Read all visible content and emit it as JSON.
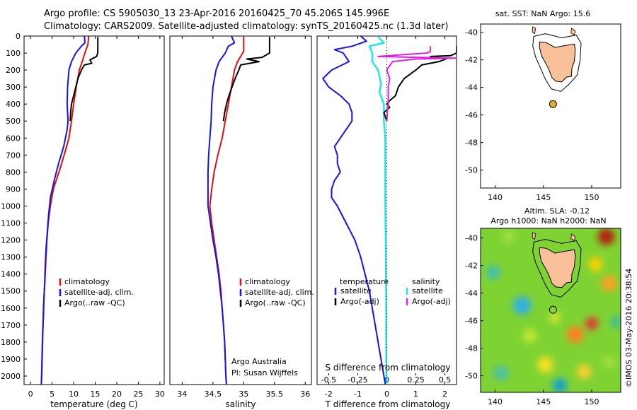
{
  "header": {
    "line1": "Argo profile: CS 5905030_13 23-Apr-2016 20160425_70 45.206S 145.996E",
    "line2": "Climatology: CARS2009. Satellite-adjusted climatology: synTS_20160425.nc (1.3d later)"
  },
  "side_stamp": "©IMOS 03-May-2016 20:38:54",
  "colors": {
    "climatology": "#e01010",
    "satellite": "#1414e6",
    "argo": "#000000",
    "sal_satellite": "#20e6e6",
    "sal_argo": "#e020e0",
    "land": "#f7c098",
    "float": "#e8b020"
  },
  "chart_data": [
    {
      "type": "line",
      "name": "temperature-panel",
      "xlabel": "temperature (deg C)",
      "xlim": [
        -1.5,
        31
      ],
      "xticks": [
        0,
        5,
        10,
        15,
        20,
        25,
        30
      ],
      "ylim": [
        2050,
        0
      ],
      "yticks": [
        0,
        100,
        200,
        300,
        400,
        500,
        600,
        700,
        800,
        900,
        1000,
        1100,
        1200,
        1300,
        1400,
        1500,
        1600,
        1700,
        1800,
        1900,
        2000
      ],
      "legend": [
        "climatology",
        "satellite-adj. clim.",
        "Argo(..raw -QC)"
      ],
      "series": [
        {
          "name": "climatology",
          "color_key": "climatology",
          "points": [
            [
              13.5,
              0
            ],
            [
              13.3,
              50
            ],
            [
              12.6,
              100
            ],
            [
              12.0,
              150
            ],
            [
              11.3,
              200
            ],
            [
              10.6,
              300
            ],
            [
              10.0,
              400
            ],
            [
              9.5,
              500
            ],
            [
              8.9,
              600
            ],
            [
              7.8,
              700
            ],
            [
              6.6,
              800
            ],
            [
              5.3,
              900
            ],
            [
              4.6,
              1000
            ],
            [
              4.1,
              1100
            ],
            [
              3.8,
              1200
            ],
            [
              3.6,
              1300
            ],
            [
              3.4,
              1400
            ],
            [
              3.2,
              1500
            ],
            [
              3.0,
              1600
            ],
            [
              2.9,
              1700
            ],
            [
              2.8,
              1800
            ],
            [
              2.7,
              1900
            ],
            [
              2.6,
              2000
            ],
            [
              2.5,
              2050
            ]
          ]
        },
        {
          "name": "satellite-adj. clim.",
          "color_key": "satellite",
          "points": [
            [
              12.5,
              0
            ],
            [
              12.6,
              40
            ],
            [
              11.8,
              60
            ],
            [
              10.5,
              100
            ],
            [
              9.5,
              150
            ],
            [
              8.9,
              200
            ],
            [
              8.6,
              300
            ],
            [
              8.5,
              400
            ],
            [
              8.7,
              500
            ],
            [
              8.5,
              550
            ],
            [
              7.7,
              650
            ],
            [
              6.5,
              750
            ],
            [
              5.5,
              850
            ],
            [
              4.6,
              950
            ],
            [
              4.2,
              1050
            ],
            [
              3.9,
              1150
            ],
            [
              3.6,
              1250
            ],
            [
              3.4,
              1350
            ],
            [
              3.3,
              1450
            ],
            [
              3.1,
              1550
            ],
            [
              3.0,
              1650
            ],
            [
              2.8,
              1750
            ],
            [
              2.7,
              1850
            ],
            [
              2.6,
              1950
            ],
            [
              2.5,
              2050
            ]
          ]
        },
        {
          "name": "Argo(..raw -QC)",
          "color_key": "argo",
          "points": [
            [
              15.6,
              5
            ],
            [
              15.6,
              100
            ],
            [
              15.3,
              120
            ],
            [
              13.8,
              140
            ],
            [
              14.2,
              160
            ],
            [
              12.5,
              170
            ],
            [
              11.8,
              200
            ],
            [
              11.0,
              250
            ],
            [
              10.5,
              300
            ],
            [
              10.0,
              350
            ],
            [
              9.5,
              400
            ],
            [
              9.3,
              450
            ],
            [
              9.2,
              500
            ]
          ]
        }
      ]
    },
    {
      "type": "line",
      "name": "salinity-panel",
      "xlabel": "salinity",
      "xlim": [
        33.8,
        36.1
      ],
      "xticks": [
        34,
        34.5,
        35,
        35.5,
        36
      ],
      "ylim": [
        2050,
        0
      ],
      "legend": [
        "climatology",
        "satellite-adj. clim.",
        "Argo(..raw -QC)"
      ],
      "annotation": [
        "Argo Australia",
        "PI: Susan Wijffels"
      ],
      "series": [
        {
          "name": "climatology",
          "color_key": "climatology",
          "points": [
            [
              35.0,
              0
            ],
            [
              35.0,
              50
            ],
            [
              35.0,
              90
            ],
            [
              34.9,
              150
            ],
            [
              34.85,
              200
            ],
            [
              34.8,
              300
            ],
            [
              34.75,
              400
            ],
            [
              34.7,
              500
            ],
            [
              34.65,
              600
            ],
            [
              34.58,
              700
            ],
            [
              34.52,
              800
            ],
            [
              34.48,
              900
            ],
            [
              34.45,
              1000
            ],
            [
              34.48,
              1100
            ],
            [
              34.52,
              1200
            ],
            [
              34.56,
              1300
            ],
            [
              34.6,
              1400
            ],
            [
              34.63,
              1500
            ],
            [
              34.65,
              1600
            ],
            [
              34.67,
              1700
            ],
            [
              34.69,
              1800
            ],
            [
              34.7,
              1900
            ],
            [
              34.71,
              2000
            ],
            [
              34.72,
              2050
            ]
          ]
        },
        {
          "name": "satellite-adj. clim.",
          "color_key": "satellite",
          "points": [
            [
              34.8,
              0
            ],
            [
              34.85,
              40
            ],
            [
              34.75,
              60
            ],
            [
              34.7,
              100
            ],
            [
              34.6,
              150
            ],
            [
              34.55,
              200
            ],
            [
              34.5,
              300
            ],
            [
              34.48,
              400
            ],
            [
              34.47,
              500
            ],
            [
              34.45,
              600
            ],
            [
              34.43,
              700
            ],
            [
              34.42,
              800
            ],
            [
              34.42,
              900
            ],
            [
              34.42,
              1000
            ],
            [
              34.46,
              1100
            ],
            [
              34.5,
              1200
            ],
            [
              34.55,
              1300
            ],
            [
              34.59,
              1400
            ],
            [
              34.62,
              1500
            ],
            [
              34.65,
              1600
            ],
            [
              34.67,
              1700
            ],
            [
              34.69,
              1800
            ],
            [
              34.7,
              1900
            ],
            [
              34.71,
              2000
            ],
            [
              34.72,
              2050
            ]
          ]
        },
        {
          "name": "Argo(..raw -QC)",
          "color_key": "argo",
          "points": [
            [
              35.42,
              5
            ],
            [
              35.42,
              100
            ],
            [
              35.3,
              125
            ],
            [
              35.05,
              135
            ],
            [
              35.25,
              150
            ],
            [
              34.95,
              170
            ],
            [
              34.92,
              200
            ],
            [
              34.86,
              250
            ],
            [
              34.81,
              300
            ],
            [
              34.76,
              350
            ],
            [
              34.72,
              400
            ],
            [
              34.69,
              450
            ],
            [
              34.67,
              500
            ]
          ]
        }
      ]
    },
    {
      "type": "line",
      "name": "difference-panel",
      "xlabel": "T difference from climatology",
      "top_axis_label": "S difference from climatology",
      "xlim": [
        -2.4,
        2.4
      ],
      "xticks": [
        -2,
        -1,
        0,
        1,
        2
      ],
      "top_ticks": [
        "-0.5",
        "-0.25",
        "0",
        "0.25",
        "0.5"
      ],
      "top_tick_values": [
        -0.5,
        -0.25,
        0,
        0.25,
        0.5
      ],
      "ylim": [
        2050,
        0
      ],
      "legend_groups": [
        "temperature",
        "salinity"
      ],
      "legend": [
        "satellite",
        "Argo(-adj)",
        "satellite",
        "Argo(-adj)"
      ],
      "series": [
        {
          "name": "temperature satellite",
          "color_key": "satellite",
          "points": [
            [
              -0.9,
              0
            ],
            [
              -0.7,
              30
            ],
            [
              -1.2,
              60
            ],
            [
              -1.8,
              80
            ],
            [
              -1.5,
              100
            ],
            [
              -1.3,
              150
            ],
            [
              -1.9,
              200
            ],
            [
              -2.2,
              250
            ],
            [
              -2.0,
              300
            ],
            [
              -1.6,
              350
            ],
            [
              -1.3,
              400
            ],
            [
              -1.2,
              450
            ],
            [
              -1.2,
              500
            ],
            [
              -1.4,
              550
            ],
            [
              -1.6,
              600
            ],
            [
              -1.8,
              650
            ],
            [
              -1.7,
              700
            ],
            [
              -1.7,
              750
            ],
            [
              -1.6,
              800
            ],
            [
              -1.8,
              850
            ],
            [
              -1.9,
              900
            ],
            [
              -1.9,
              950
            ],
            [
              -1.7,
              1000
            ],
            [
              -1.4,
              1100
            ],
            [
              -1.1,
              1200
            ],
            [
              -0.9,
              1300
            ],
            [
              -0.75,
              1400
            ],
            [
              -0.6,
              1500
            ],
            [
              -0.5,
              1600
            ],
            [
              -0.4,
              1700
            ],
            [
              -0.3,
              1800
            ],
            [
              -0.2,
              1900
            ],
            [
              -0.1,
              2000
            ],
            [
              -0.05,
              2050
            ]
          ]
        },
        {
          "name": "salinity satellite",
          "color_key": "sal_satellite",
          "points": [
            [
              -0.3,
              5
            ],
            [
              -0.1,
              40
            ],
            [
              -0.6,
              60
            ],
            [
              -0.5,
              100
            ],
            [
              -0.5,
              150
            ],
            [
              -0.3,
              200
            ],
            [
              -0.2,
              280
            ],
            [
              -0.25,
              330
            ],
            [
              -0.1,
              400
            ],
            [
              -0.1,
              500
            ],
            [
              -0.05,
              600
            ],
            [
              -0.05,
              800
            ],
            [
              -0.05,
              1000
            ],
            [
              -0.04,
              1200
            ],
            [
              -0.03,
              1400
            ],
            [
              -0.02,
              1600
            ],
            [
              -0.02,
              1800
            ],
            [
              -0.01,
              2050
            ]
          ]
        },
        {
          "name": "temperature Argo(-adj)",
          "color_key": "argo",
          "points": [
            [
              2.4,
              60
            ],
            [
              2.4,
              100
            ],
            [
              2.2,
              115
            ],
            [
              1.5,
              120
            ],
            [
              1.6,
              125
            ],
            [
              2.1,
              130
            ],
            [
              1.8,
              150
            ],
            [
              1.2,
              170
            ],
            [
              1.0,
              200
            ],
            [
              0.6,
              250
            ],
            [
              0.4,
              300
            ],
            [
              0.3,
              350
            ],
            [
              0.1,
              380
            ],
            [
              0.0,
              400
            ],
            [
              0.1,
              420
            ],
            [
              -0.1,
              450
            ],
            [
              0.0,
              500
            ]
          ]
        },
        {
          "name": "salinity Argo(-adj)",
          "color_key": "sal_argo",
          "points": [
            [
              1.5,
              60
            ],
            [
              1.5,
              90
            ],
            [
              1.4,
              100
            ],
            [
              0.5,
              110
            ],
            [
              -0.3,
              120
            ],
            [
              1.0,
              125
            ],
            [
              2.4,
              130
            ],
            [
              1.0,
              135
            ],
            [
              0.2,
              150
            ],
            [
              0.0,
              200
            ],
            [
              0.1,
              250
            ],
            [
              0.05,
              300
            ],
            [
              0.05,
              400
            ],
            [
              0.02,
              450
            ],
            [
              0.0,
              500
            ]
          ]
        }
      ]
    },
    {
      "type": "scatter",
      "name": "sst-map",
      "title": "sat. SST: NaN Argo: 15.6",
      "xlim": [
        138.5,
        153
      ],
      "ylim": [
        -51.3,
        -39.4
      ],
      "xticks": [
        140,
        145,
        150
      ],
      "yticks": [
        -40,
        -42,
        -44,
        -46,
        -48,
        -50
      ],
      "float_position": [
        145.996,
        -45.206
      ]
    },
    {
      "type": "heatmap",
      "name": "sla-map",
      "title_lines": [
        "Altim. SLA: -0.12",
        "Argo h1000: NaN h2000: NaN"
      ],
      "xlim": [
        138.5,
        153
      ],
      "ylim": [
        -51.2,
        -39.3
      ],
      "xticks": [
        140,
        145,
        150
      ],
      "yticks": [
        -40,
        -42,
        -44,
        -46,
        -48,
        -50
      ],
      "float_position": [
        145.996,
        -45.206
      ]
    }
  ]
}
